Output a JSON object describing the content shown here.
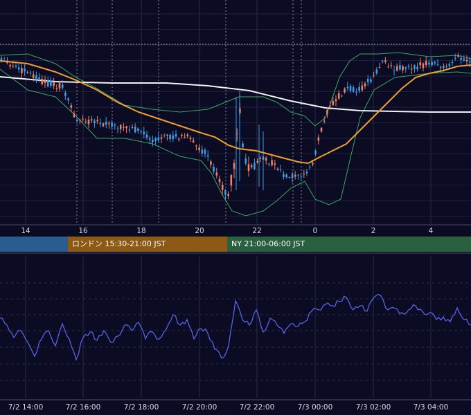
{
  "chart_data": [
    {
      "type": "candlestick",
      "overlays": [
        "moving-average-orange",
        "moving-average-white",
        "bollinger-bands-green"
      ],
      "x_tick_labels": [
        "14",
        "16",
        "18",
        "20",
        "22",
        "0",
        "2",
        "4"
      ],
      "grid": true,
      "colors": {
        "up": "#3a9ee8",
        "down": "#e8836a",
        "ma_short": "#f0a030",
        "ma_long": "#f2f2f2",
        "bands": "#3aa860",
        "background": "#0b0c24"
      }
    },
    {
      "type": "line",
      "series_color": "#5a63e6",
      "x_tick_labels": [
        "7/2 14:00",
        "7/2 16:00",
        "7/2 18:00",
        "7/2 20:00",
        "7/2 22:00",
        "7/3 00:00",
        "7/3 02:00",
        "7/3 04:00"
      ],
      "grid": true
    }
  ],
  "sessions": [
    {
      "label": "",
      "color": "#2b5c8f"
    },
    {
      "label": "ロンドン 15:30-21:00 JST",
      "color": "#8c5a14"
    },
    {
      "label": "NY 21:00-06:00 JST",
      "color": "#2a6040"
    }
  ]
}
